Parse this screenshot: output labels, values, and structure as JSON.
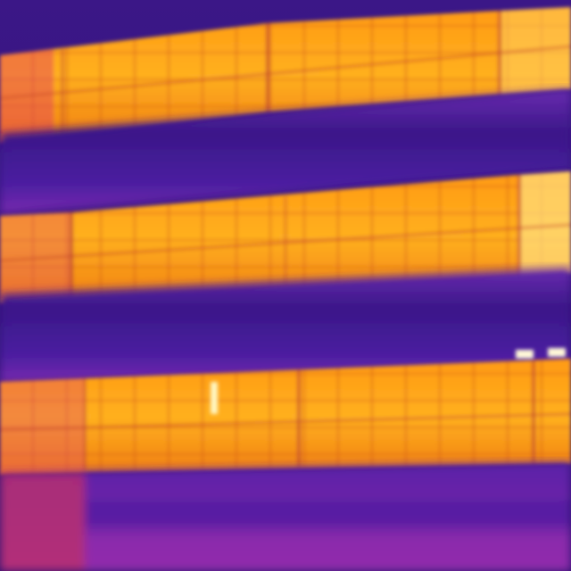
{
  "image": {
    "kind": "thermal-infrared-photo",
    "subject": "solar-panel-rows",
    "palette": {
      "cold": "#2a0f6e",
      "cool": "#4a1fa0",
      "mid": "#9a2aa8",
      "warm": "#e0406a",
      "hot": "#f08a10",
      "hotter": "#ffb320",
      "hottest": "#fff2a0"
    },
    "hotspot_count": 3
  }
}
